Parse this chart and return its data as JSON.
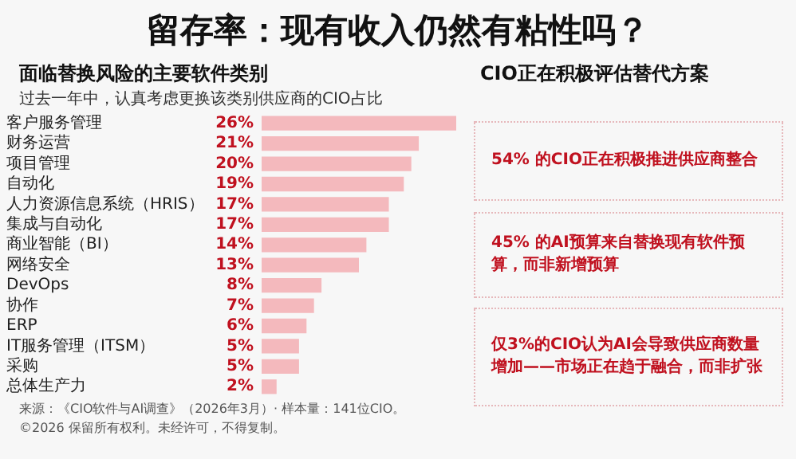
{
  "chart_data": [
    {
      "type": "bar",
      "orientation": "horizontal",
      "title": "面临替换风险的主要软件类别",
      "subtitle": "过去一年中，认真考虑更换该类别供应商的CIO占比",
      "categories": [
        "客户服务管理",
        "财务运营",
        "项目管理",
        "自动化",
        "人力资源信息系统（HRIS）",
        "集成与自动化",
        "商业智能（BI）",
        "网络安全",
        "DevOps",
        "协作",
        "ERP",
        "IT服务管理（ITSM）",
        "采购",
        "总体生产力"
      ],
      "values": [
        26,
        21,
        20,
        19,
        17,
        17,
        14,
        13,
        8,
        7,
        6,
        5,
        5,
        2
      ],
      "value_labels": [
        "26%",
        "21%",
        "20%",
        "19%",
        "17%",
        "17%",
        "14%",
        "13%",
        "8%",
        "7%",
        "6%",
        "5%",
        "5%",
        "2%"
      ],
      "color": "#f4b9bd",
      "annotations": [
        "留存率：现有收入仍然有粘性吗？",
        "来源：《CIO软件与AI调查》（2026年3月）· 样本量：141位CIO。",
        "©2026 保留所有权利。未经许可，不得复制。"
      ]
    },
    {
      "type": "other",
      "title": "CIO正在积极评估替代方案",
      "annotations": [
        "54% 的CIO正在积极推进供应商整合",
        "45% 的AI预算来自替换现有软件预算，而非新增预算",
        "仅3%的CIO认为AI会导致供应商数量增加——市场正在趋于融合，而非扩张"
      ]
    }
  ]
}
